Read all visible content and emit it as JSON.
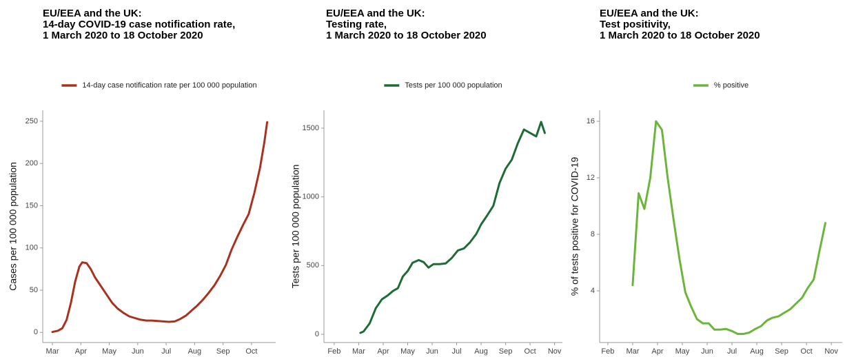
{
  "chart_data": [
    {
      "type": "line",
      "title": [
        "EU/EEA and the UK:",
        "14-day COVID-19 case notification rate,",
        "1 March 2020 to 18 October 2020"
      ],
      "y_label": "Cases per 100 000 population",
      "x": [
        3.0,
        3.2,
        3.35,
        3.5,
        3.65,
        3.8,
        3.95,
        4.05,
        4.2,
        4.35,
        4.5,
        4.7,
        4.9,
        5.1,
        5.3,
        5.5,
        5.7,
        5.9,
        6.1,
        6.3,
        6.5,
        6.7,
        6.9,
        7.1,
        7.3,
        7.5,
        7.7,
        7.9,
        8.1,
        8.3,
        8.5,
        8.7,
        8.9,
        9.1,
        9.3,
        9.5,
        9.7,
        9.9,
        10.1,
        10.3,
        10.45,
        10.55
      ],
      "series": [
        {
          "name": "14-day case notification rate per 100 000 population",
          "color": "#a8321e",
          "values": [
            0.5,
            2,
            5,
            15,
            35,
            60,
            78,
            83,
            82,
            75,
            65,
            55,
            45,
            35,
            28,
            23,
            19,
            17,
            15,
            14,
            14,
            13.5,
            13,
            12.5,
            13,
            16,
            20,
            26,
            32,
            39,
            47,
            56,
            67,
            80,
            98,
            113,
            127,
            140,
            165,
            195,
            225,
            249
          ]
        }
      ],
      "xlim": [
        2.66,
        10.85
      ],
      "xticks": [
        {
          "value": 3,
          "label": "Mar"
        },
        {
          "value": 4,
          "label": "Apr"
        },
        {
          "value": 5,
          "label": "May"
        },
        {
          "value": 6,
          "label": "Jun"
        },
        {
          "value": 7,
          "label": "Jul"
        },
        {
          "value": 8,
          "label": "Aug"
        },
        {
          "value": 9,
          "label": "Sep"
        },
        {
          "value": 10,
          "label": "Oct"
        }
      ],
      "ylim": [
        -12,
        263
      ],
      "yticks": [
        0,
        50,
        100,
        150,
        200,
        250
      ],
      "legend": "top"
    },
    {
      "type": "line",
      "title": [
        "EU/EEA and the UK:",
        "Testing rate,",
        "1 March 2020 to 18 October 2020"
      ],
      "y_label": "Tests per 100 000 population",
      "x": [
        3.07,
        3.2,
        3.45,
        3.7,
        3.95,
        4.2,
        4.4,
        4.6,
        4.8,
        5.0,
        5.2,
        5.45,
        5.65,
        5.85,
        6.05,
        6.3,
        6.55,
        6.8,
        7.05,
        7.3,
        7.55,
        7.8,
        8.0,
        8.25,
        8.5,
        8.75,
        9.0,
        9.25,
        9.5,
        9.75,
        10.0,
        10.25,
        10.45,
        10.6
      ],
      "series": [
        {
          "name": "Tests per 100 000 population",
          "color": "#1e6b34",
          "values": [
            10,
            20,
            80,
            190,
            255,
            285,
            315,
            335,
            420,
            460,
            520,
            540,
            525,
            485,
            510,
            510,
            515,
            555,
            610,
            625,
            670,
            730,
            800,
            865,
            935,
            1100,
            1205,
            1270,
            1390,
            1490,
            1465,
            1440,
            1545,
            1465
          ]
        }
      ],
      "xlim": [
        1.58,
        11.32
      ],
      "xticks": [
        {
          "value": 2,
          "label": "Feb"
        },
        {
          "value": 3,
          "label": "Mar"
        },
        {
          "value": 4,
          "label": "Apr"
        },
        {
          "value": 5,
          "label": "May"
        },
        {
          "value": 6,
          "label": "Jun"
        },
        {
          "value": 7,
          "label": "Jul"
        },
        {
          "value": 8,
          "label": "Aug"
        },
        {
          "value": 9,
          "label": "Sep"
        },
        {
          "value": 10,
          "label": "Oct"
        },
        {
          "value": 11,
          "label": "Nov"
        }
      ],
      "ylim": [
        -60,
        1630
      ],
      "yticks": [
        0,
        500,
        1000,
        1500
      ],
      "legend": "top"
    },
    {
      "type": "line",
      "title": [
        "EU/EEA and the UK:",
        "Test positivity,",
        "1 March 2020 to 18 October 2020"
      ],
      "y_label": "% of tests positive for COVID-19",
      "x": [
        3.0,
        3.24,
        3.47,
        3.71,
        3.94,
        4.18,
        4.41,
        4.65,
        4.88,
        5.12,
        5.35,
        5.59,
        5.82,
        6.06,
        6.29,
        6.53,
        6.76,
        7.0,
        7.23,
        7.47,
        7.7,
        7.94,
        8.17,
        8.41,
        8.64,
        8.88,
        9.11,
        9.35,
        9.58,
        9.82,
        10.05,
        10.29,
        10.52,
        10.76
      ],
      "series": [
        {
          "name": "% positive",
          "color": "#6bb63a",
          "values": [
            4.4,
            10.9,
            9.8,
            12,
            16,
            15.4,
            12,
            9,
            6.3,
            3.9,
            2.9,
            2.0,
            1.7,
            1.7,
            1.25,
            1.25,
            1.3,
            1.15,
            0.95,
            0.95,
            1.05,
            1.3,
            1.5,
            1.9,
            2.1,
            2.2,
            2.45,
            2.7,
            3.1,
            3.5,
            4.2,
            4.8,
            6.8,
            8.8
          ]
        }
      ],
      "xlim": [
        1.67,
        11.44
      ],
      "xticks": [
        {
          "value": 2,
          "label": "Feb"
        },
        {
          "value": 3,
          "label": "Mar"
        },
        {
          "value": 4,
          "label": "Apr"
        },
        {
          "value": 5,
          "label": "May"
        },
        {
          "value": 6,
          "label": "Jun"
        },
        {
          "value": 7,
          "label": "Jul"
        },
        {
          "value": 8,
          "label": "Aug"
        },
        {
          "value": 9,
          "label": "Sep"
        },
        {
          "value": 10,
          "label": "Oct"
        },
        {
          "value": 11,
          "label": "Nov"
        }
      ],
      "ylim": [
        0.34,
        16.78
      ],
      "yticks": [
        4,
        8,
        12,
        16
      ],
      "legend": "top"
    }
  ]
}
